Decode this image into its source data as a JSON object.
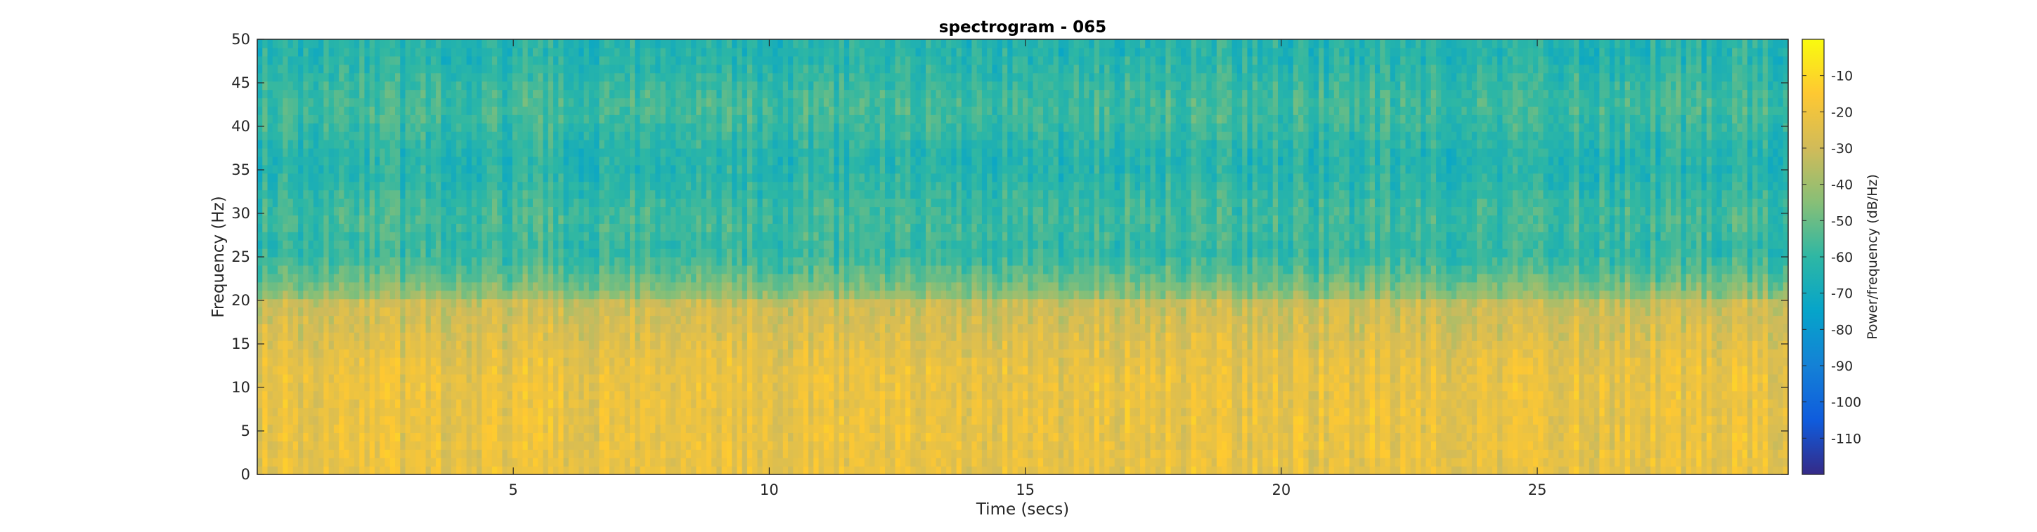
{
  "chart_data": {
    "type": "heatmap",
    "title": "spectrogram - 065",
    "xlabel": "Time (secs)",
    "ylabel": "Frequency (Hz)",
    "colorbar_label": "Power/frequency (dB/Hz)",
    "xlim": [
      0,
      29.9
    ],
    "ylim": [
      0,
      50
    ],
    "clim": [
      -120,
      0
    ],
    "x_ticks": [
      5,
      10,
      15,
      20,
      25
    ],
    "y_ticks": [
      0,
      5,
      10,
      15,
      20,
      25,
      30,
      35,
      40,
      45,
      50
    ],
    "colorbar_ticks": [
      -10,
      -20,
      -30,
      -40,
      -50,
      -60,
      -70,
      -80,
      -90,
      -100,
      -110
    ],
    "colormap": "parula",
    "grid": false,
    "bands": [
      {
        "freq_range": [
          0,
          12
        ],
        "power_db": -22
      },
      {
        "freq_range": [
          12,
          20
        ],
        "power_db": -38
      },
      {
        "freq_range": [
          20,
          50
        ],
        "power_db": -60
      }
    ]
  }
}
